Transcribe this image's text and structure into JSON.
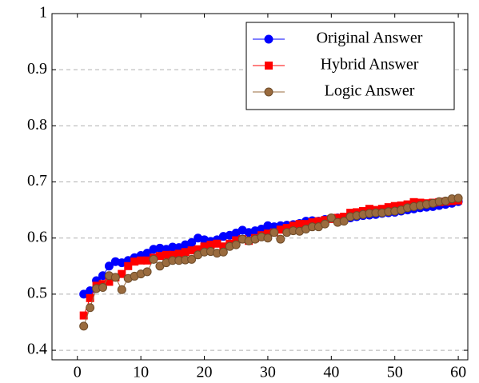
{
  "chart_data": {
    "type": "line",
    "x": [
      1,
      2,
      3,
      4,
      5,
      6,
      7,
      8,
      9,
      10,
      11,
      12,
      13,
      14,
      15,
      16,
      17,
      18,
      19,
      20,
      21,
      22,
      23,
      24,
      25,
      26,
      27,
      28,
      29,
      30,
      31,
      32,
      33,
      34,
      35,
      36,
      37,
      38,
      39,
      40,
      41,
      42,
      43,
      44,
      45,
      46,
      47,
      48,
      49,
      50,
      51,
      52,
      53,
      54,
      55,
      56,
      57,
      58,
      59,
      60
    ],
    "series": [
      {
        "name": "Original Answer",
        "color": "#0000ff",
        "marker": "circle",
        "values": [
          0.5,
          0.506,
          0.524,
          0.533,
          0.55,
          0.558,
          0.556,
          0.56,
          0.565,
          0.569,
          0.573,
          0.58,
          0.582,
          0.58,
          0.584,
          0.583,
          0.588,
          0.592,
          0.6,
          0.597,
          0.594,
          0.597,
          0.603,
          0.605,
          0.609,
          0.614,
          0.61,
          0.613,
          0.616,
          0.622,
          0.62,
          0.622,
          0.623,
          0.624,
          0.626,
          0.63,
          0.631,
          0.63,
          0.633,
          0.635,
          0.636,
          0.637,
          0.636,
          0.638,
          0.64,
          0.641,
          0.642,
          0.644,
          0.645,
          0.646,
          0.648,
          0.65,
          0.652,
          0.654,
          0.655,
          0.656,
          0.658,
          0.66,
          0.662,
          0.665
        ]
      },
      {
        "name": "Hybrid Answer",
        "color": "#ff0000",
        "marker": "square",
        "values": [
          0.462,
          0.493,
          0.515,
          0.518,
          0.522,
          0.53,
          0.536,
          0.55,
          0.558,
          0.56,
          0.56,
          0.565,
          0.568,
          0.57,
          0.57,
          0.572,
          0.575,
          0.578,
          0.58,
          0.585,
          0.588,
          0.59,
          0.585,
          0.59,
          0.596,
          0.598,
          0.595,
          0.6,
          0.605,
          0.608,
          0.61,
          0.615,
          0.618,
          0.622,
          0.625,
          0.625,
          0.628,
          0.63,
          0.632,
          0.634,
          0.636,
          0.638,
          0.645,
          0.646,
          0.648,
          0.652,
          0.65,
          0.652,
          0.655,
          0.657,
          0.658,
          0.66,
          0.664,
          0.663,
          0.662,
          0.663,
          0.664,
          0.665,
          0.666,
          0.667
        ]
      },
      {
        "name": "Logic Answer",
        "color": "#9a6b3e",
        "marker": "circle",
        "values": [
          0.443,
          0.476,
          0.51,
          0.512,
          0.533,
          0.53,
          0.508,
          0.528,
          0.532,
          0.536,
          0.54,
          0.562,
          0.55,
          0.556,
          0.56,
          0.56,
          0.561,
          0.562,
          0.57,
          0.575,
          0.576,
          0.573,
          0.575,
          0.585,
          0.588,
          0.598,
          0.595,
          0.598,
          0.602,
          0.6,
          0.61,
          0.598,
          0.61,
          0.613,
          0.612,
          0.616,
          0.62,
          0.62,
          0.625,
          0.636,
          0.628,
          0.63,
          0.638,
          0.64,
          0.642,
          0.644,
          0.645,
          0.645,
          0.647,
          0.648,
          0.65,
          0.654,
          0.656,
          0.658,
          0.66,
          0.662,
          0.665,
          0.666,
          0.67,
          0.671
        ]
      }
    ],
    "xlim": [
      -4,
      61.5
    ],
    "xticks": [
      0,
      10,
      20,
      30,
      40,
      50,
      60
    ],
    "ylim": [
      0.383,
      1
    ],
    "yticks": [
      0.4,
      0.5,
      0.6,
      0.7,
      0.8,
      0.9,
      1
    ],
    "grid": true,
    "legend": "upper right"
  }
}
